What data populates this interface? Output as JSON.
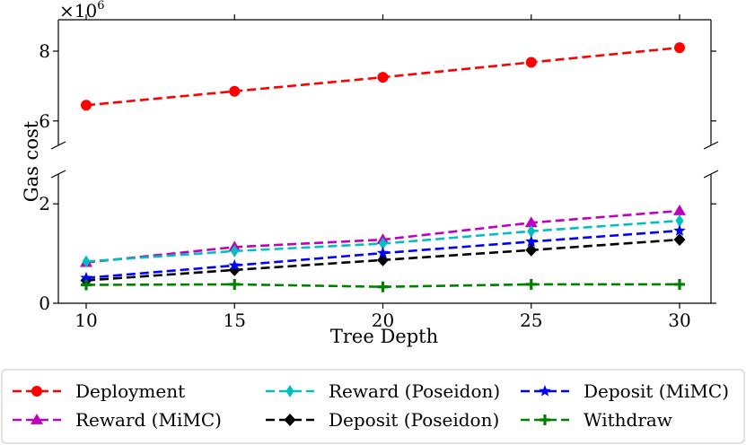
{
  "chart_data": {
    "type": "line",
    "xlabel": "Tree Depth",
    "ylabel": "Gas cost",
    "y_multiplier": "×10",
    "y_multiplier_exponent": "6",
    "x": [
      10,
      15,
      20,
      25,
      30
    ],
    "x_ticks": [
      "10",
      "15",
      "20",
      "25",
      "30"
    ],
    "broken_y_axis": true,
    "upper_panel": {
      "ylim": [
        5.3,
        8.9
      ],
      "y_ticks": [
        "6",
        "8"
      ],
      "tick_values": [
        6,
        8
      ]
    },
    "lower_panel": {
      "ylim": [
        0,
        2.6
      ],
      "y_ticks": [
        "0",
        "2"
      ],
      "tick_values": [
        0,
        2
      ]
    },
    "legend_position": "below",
    "series": [
      {
        "name": "Deployment",
        "panel": "upper",
        "color": "#ff0000",
        "marker": "circle",
        "values": [
          6.45,
          6.85,
          7.25,
          7.68,
          8.1
        ]
      },
      {
        "name": "Reward (MiMC)",
        "panel": "lower",
        "color": "#bf00bf",
        "marker": "triangle",
        "values": [
          0.82,
          1.13,
          1.28,
          1.62,
          1.86
        ]
      },
      {
        "name": "Reward (Poseidon)",
        "panel": "lower",
        "color": "#00bfbf",
        "marker": "thin-diamond",
        "values": [
          0.84,
          1.05,
          1.2,
          1.45,
          1.66
        ]
      },
      {
        "name": "Deposit (Poseidon)",
        "panel": "lower",
        "color": "#000000",
        "marker": "diamond",
        "values": [
          0.46,
          0.67,
          0.87,
          1.07,
          1.28
        ]
      },
      {
        "name": "Deposit (MiMC)",
        "panel": "lower",
        "color": "#0000ff",
        "marker": "star",
        "values": [
          0.51,
          0.76,
          1.01,
          1.24,
          1.46
        ]
      },
      {
        "name": "Withdraw",
        "panel": "lower",
        "color": "#008000",
        "marker": "plus",
        "values": [
          0.37,
          0.38,
          0.33,
          0.38,
          0.38
        ]
      }
    ],
    "legend_order": [
      "Deployment",
      "Reward (Poseidon)",
      "Deposit (MiMC)",
      "Reward (MiMC)",
      "Deposit (Poseidon)",
      "Withdraw"
    ]
  }
}
